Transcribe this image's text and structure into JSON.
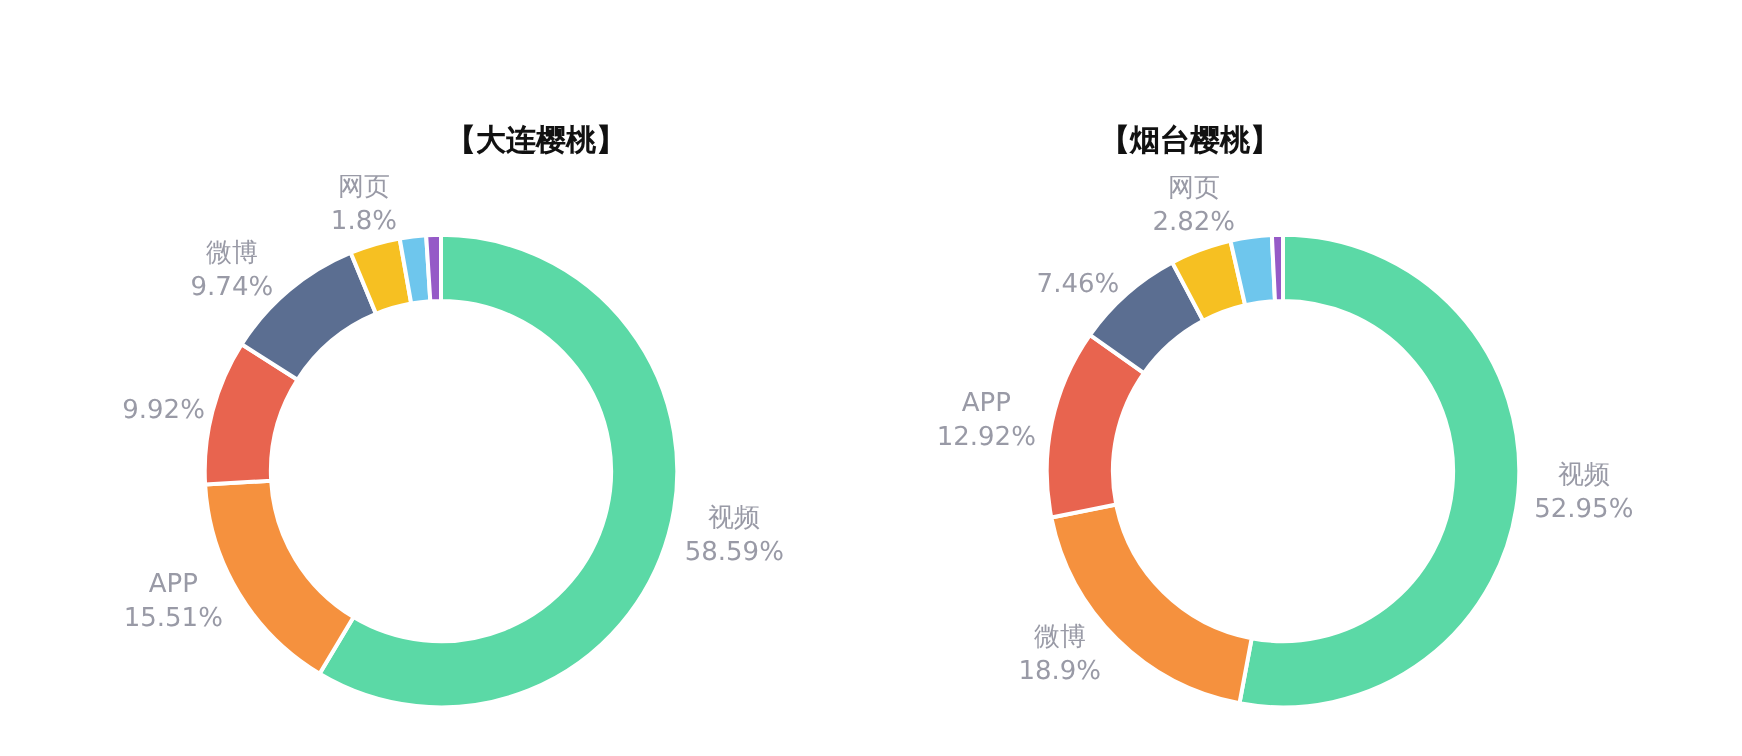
{
  "chart_data": [
    {
      "type": "donut",
      "title": "【大连樱桃】",
      "categories": [
        "视频",
        "APP",
        null,
        "微博",
        null,
        "网页",
        null
      ],
      "values": [
        58.59,
        15.51,
        9.92,
        9.74,
        3.44,
        1.8,
        1.0
      ],
      "value_labels": [
        "58.59%",
        "15.51%",
        "9.92%",
        "9.74%",
        null,
        "1.8%",
        null
      ],
      "colors": [
        "#5bd9a6",
        "#f5913e",
        "#e8644f",
        "#5b6e91",
        "#f6c022",
        "#6ec6ed",
        "#955ac7"
      ],
      "legend": false
    },
    {
      "type": "donut",
      "title": "【烟台樱桃】",
      "categories": [
        "视频",
        "微博",
        "APP",
        null,
        null,
        "网页",
        null
      ],
      "values": [
        52.95,
        18.9,
        12.92,
        7.46,
        4.2,
        2.82,
        0.75
      ],
      "value_labels": [
        "52.95%",
        "18.9%",
        "12.92%",
        "7.46%",
        null,
        "2.82%",
        null
      ],
      "colors": [
        "#5bd9a6",
        "#f5913e",
        "#e8644f",
        "#5b6e91",
        "#f6c022",
        "#6ec6ed",
        "#955ac7"
      ],
      "legend": false
    }
  ]
}
